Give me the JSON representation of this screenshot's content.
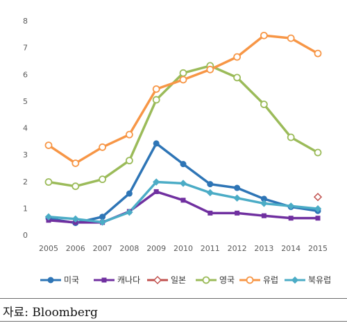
{
  "chart_data": {
    "type": "line",
    "x": [
      "2005",
      "2006",
      "2007",
      "2008",
      "2009",
      "2010",
      "2011",
      "2012",
      "2013",
      "2014",
      "2015"
    ],
    "ylim": [
      0,
      8
    ],
    "yticks": [
      "0",
      "1",
      "2",
      "3",
      "4",
      "5",
      "6",
      "7",
      "8"
    ],
    "grid": false,
    "legend_position": "bottom",
    "series": [
      {
        "name": "미국",
        "color": "#2e75b6",
        "marker": "circle",
        "values": [
          0.62,
          0.45,
          0.68,
          1.55,
          3.42,
          2.65,
          1.9,
          1.76,
          1.35,
          1.05,
          0.9
        ]
      },
      {
        "name": "캐나다",
        "color": "#7030a0",
        "marker": "square",
        "values": [
          0.55,
          0.47,
          0.47,
          0.88,
          1.62,
          1.3,
          0.82,
          0.82,
          0.72,
          0.63,
          0.63
        ]
      },
      {
        "name": "일본",
        "color": "#c0504d",
        "marker": "diamond",
        "values": [
          null,
          null,
          null,
          null,
          null,
          null,
          null,
          null,
          null,
          null,
          1.42
        ]
      },
      {
        "name": "영국",
        "color": "#9bbb59",
        "marker": "circle",
        "values": [
          1.98,
          1.82,
          2.08,
          2.78,
          5.05,
          6.05,
          6.32,
          5.88,
          4.88,
          3.65,
          3.08
        ]
      },
      {
        "name": "유럽",
        "color": "#f79646",
        "marker": "circle",
        "values": [
          3.35,
          2.68,
          3.28,
          3.75,
          5.45,
          5.8,
          6.18,
          6.65,
          7.45,
          7.35,
          6.78
        ]
      },
      {
        "name": "북유럽",
        "color": "#4bacc6",
        "marker": "diamond",
        "values": [
          0.68,
          0.6,
          0.48,
          0.85,
          1.98,
          1.93,
          1.58,
          1.38,
          1.18,
          1.08,
          0.98
        ]
      }
    ]
  },
  "source": "자료: Bloomberg"
}
